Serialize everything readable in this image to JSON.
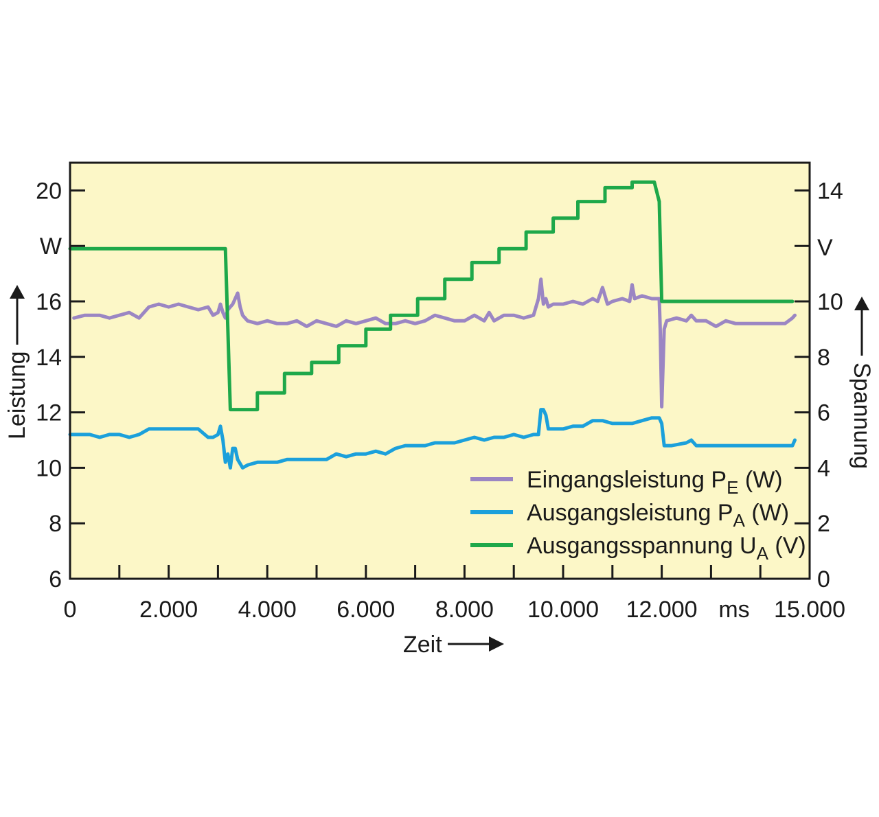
{
  "chart_data": {
    "type": "line",
    "x_axis": {
      "label": "Zeit",
      "unit": "ms",
      "range": [
        0,
        15000
      ],
      "ticks": [
        0,
        2000,
        4000,
        6000,
        8000,
        10000,
        12000,
        15000
      ],
      "tick_labels": [
        "0",
        "2.000",
        "4.000",
        "6.000",
        "8.000",
        "10.000",
        "12.000",
        "15.000"
      ],
      "minor_tick_step": 1000
    },
    "y_left": {
      "label": "Leistung",
      "unit": "W",
      "range": [
        6,
        21
      ],
      "ticks": [
        6,
        8,
        10,
        12,
        14,
        16,
        20
      ],
      "tick_labels": [
        "6",
        "8",
        "10",
        "12",
        "14",
        "16",
        "20"
      ],
      "unit_label_at": 18
    },
    "y_right": {
      "label": "Spannung",
      "unit": "V",
      "range": [
        0,
        15
      ],
      "ticks": [
        0,
        2,
        4,
        6,
        8,
        10,
        14
      ],
      "tick_labels": [
        "0",
        "2",
        "4",
        "6",
        "8",
        "10",
        "14"
      ],
      "unit_label_at": 12
    },
    "grid": false,
    "background_color": "#fcf7c7",
    "legend_position": "bottom-right",
    "series": [
      {
        "name": "Eingangsleistung P_E (W)",
        "legend": {
          "main": "Eingangsleistung P",
          "sub": "E",
          "suffix": " (W)"
        },
        "axis": "left",
        "color": "#9b86c3",
        "x": [
          80,
          300,
          600,
          800,
          1000,
          1200,
          1400,
          1600,
          1800,
          2000,
          2200,
          2400,
          2600,
          2800,
          2900,
          3000,
          3050,
          3100,
          3150,
          3200,
          3300,
          3400,
          3450,
          3500,
          3600,
          3800,
          4000,
          4200,
          4400,
          4600,
          4800,
          5000,
          5200,
          5400,
          5600,
          5800,
          6000,
          6200,
          6400,
          6600,
          6800,
          7000,
          7200,
          7400,
          7600,
          7800,
          8000,
          8200,
          8400,
          8500,
          8600,
          8800,
          9000,
          9200,
          9400,
          9500,
          9550,
          9600,
          9650,
          9700,
          9800,
          10000,
          10200,
          10400,
          10600,
          10700,
          10800,
          10900,
          11000,
          11200,
          11350,
          11400,
          11450,
          11600,
          11800,
          11950,
          11970,
          12000,
          12050,
          12100,
          12300,
          12500,
          12600,
          12700,
          12900,
          13100,
          13300,
          13500,
          13700,
          13900,
          14100,
          14300,
          14500,
          14650,
          14700
        ],
        "y": [
          15.4,
          15.5,
          15.5,
          15.4,
          15.5,
          15.6,
          15.4,
          15.8,
          15.9,
          15.8,
          15.9,
          15.8,
          15.7,
          15.8,
          15.5,
          15.6,
          15.9,
          15.6,
          15.4,
          15.7,
          15.9,
          16.3,
          15.8,
          15.5,
          15.3,
          15.2,
          15.3,
          15.2,
          15.2,
          15.3,
          15.1,
          15.3,
          15.2,
          15.1,
          15.3,
          15.2,
          15.3,
          15.4,
          15.2,
          15.2,
          15.3,
          15.2,
          15.3,
          15.5,
          15.4,
          15.3,
          15.3,
          15.5,
          15.3,
          15.6,
          15.3,
          15.5,
          15.5,
          15.4,
          15.5,
          16.1,
          16.8,
          15.9,
          16.1,
          15.8,
          15.9,
          15.9,
          16.0,
          15.9,
          16.1,
          16.0,
          16.5,
          15.9,
          16.0,
          16.1,
          16.0,
          16.6,
          16.1,
          16.2,
          16.1,
          16.1,
          15.0,
          12.2,
          15.0,
          15.3,
          15.4,
          15.3,
          15.5,
          15.3,
          15.3,
          15.1,
          15.3,
          15.2,
          15.2,
          15.2,
          15.2,
          15.2,
          15.2,
          15.4,
          15.5
        ]
      },
      {
        "name": "Ausgangsleistung P_A (W)",
        "legend": {
          "main": "Ausgangsleistung P",
          "sub": "A",
          "suffix": " (W)"
        },
        "axis": "left",
        "color": "#1ba0db",
        "x": [
          0,
          200,
          400,
          600,
          800,
          1000,
          1200,
          1400,
          1600,
          1700,
          2000,
          2200,
          2400,
          2600,
          2800,
          2900,
          3000,
          3050,
          3100,
          3150,
          3200,
          3250,
          3300,
          3350,
          3400,
          3500,
          3600,
          3800,
          4000,
          4200,
          4400,
          4600,
          4800,
          5000,
          5200,
          5400,
          5600,
          5800,
          6000,
          6200,
          6400,
          6600,
          6800,
          7000,
          7200,
          7400,
          7600,
          7800,
          8000,
          8200,
          8400,
          8600,
          8800,
          9000,
          9200,
          9400,
          9500,
          9550,
          9600,
          9650,
          9700,
          9800,
          10000,
          10200,
          10400,
          10600,
          10800,
          11000,
          11200,
          11400,
          11600,
          11800,
          11950,
          12000,
          12050,
          12200,
          12500,
          12600,
          12700,
          12900,
          13100,
          13300,
          13500,
          13700,
          13900,
          14100,
          14300,
          14500,
          14650,
          14700
        ],
        "y": [
          11.2,
          11.2,
          11.2,
          11.1,
          11.2,
          11.2,
          11.1,
          11.2,
          11.4,
          11.4,
          11.4,
          11.4,
          11.4,
          11.4,
          11.1,
          11.1,
          11.2,
          11.5,
          11.0,
          10.2,
          10.5,
          10.0,
          10.7,
          10.7,
          10.3,
          10.0,
          10.1,
          10.2,
          10.2,
          10.2,
          10.3,
          10.3,
          10.3,
          10.3,
          10.3,
          10.5,
          10.4,
          10.5,
          10.5,
          10.6,
          10.5,
          10.7,
          10.8,
          10.8,
          10.8,
          10.9,
          10.9,
          10.9,
          11.0,
          11.1,
          11.0,
          11.1,
          11.1,
          11.2,
          11.1,
          11.2,
          11.2,
          12.1,
          12.1,
          11.9,
          11.4,
          11.4,
          11.4,
          11.5,
          11.5,
          11.7,
          11.7,
          11.6,
          11.6,
          11.6,
          11.7,
          11.8,
          11.8,
          11.6,
          10.8,
          10.8,
          10.9,
          11.0,
          10.8,
          10.8,
          10.8,
          10.8,
          10.8,
          10.8,
          10.8,
          10.8,
          10.8,
          10.8,
          10.8,
          11.0
        ]
      },
      {
        "name": "Ausgangsspannung U_A (V)",
        "legend": {
          "main": "Ausgangsspannung U",
          "sub": "A",
          "suffix": " (V)"
        },
        "axis": "right",
        "color": "#1ea84a",
        "x": [
          0,
          3150,
          3200,
          3250,
          3800,
          3800,
          4350,
          4350,
          4900,
          4900,
          5450,
          5450,
          6000,
          6000,
          6500,
          6500,
          7050,
          7050,
          7600,
          7600,
          8150,
          8150,
          8700,
          8700,
          9250,
          9250,
          9800,
          9800,
          10300,
          10300,
          10850,
          10850,
          11400,
          11400,
          11450,
          11850,
          11950,
          12000,
          14650
        ],
        "y": [
          11.9,
          11.9,
          9.0,
          6.1,
          6.1,
          6.7,
          6.7,
          7.4,
          7.4,
          7.8,
          7.8,
          8.4,
          8.4,
          9.0,
          9.0,
          9.5,
          9.5,
          10.1,
          10.1,
          10.8,
          10.8,
          11.4,
          11.4,
          11.9,
          11.9,
          12.5,
          12.5,
          13.0,
          13.0,
          13.6,
          13.6,
          14.1,
          14.1,
          14.3,
          14.3,
          14.3,
          13.6,
          10.0,
          10.0
        ]
      }
    ]
  }
}
